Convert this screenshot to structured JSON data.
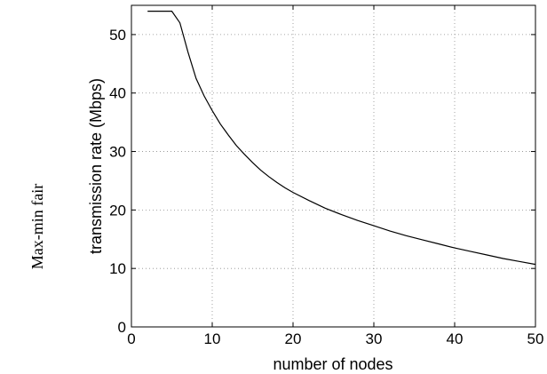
{
  "row_label": "Max-min fair",
  "chart_data": {
    "type": "line",
    "xlabel": "number of nodes",
    "ylabel": "transmission rate (Mbps)",
    "xlim": [
      0,
      50
    ],
    "ylim": [
      0,
      55
    ],
    "xticks": [
      0,
      10,
      20,
      30,
      40,
      50
    ],
    "yticks": [
      0,
      10,
      20,
      30,
      40,
      50
    ],
    "grid": true,
    "series": [
      {
        "x": [
          2,
          3,
          4,
          5,
          6,
          7,
          8,
          9,
          10,
          11,
          12,
          13,
          14,
          15,
          16,
          17,
          18,
          19,
          20,
          22,
          24,
          26,
          28,
          30,
          32,
          34,
          36,
          38,
          40,
          42,
          44,
          46,
          48,
          50
        ],
        "y": [
          54,
          54,
          54,
          54,
          52,
          47,
          42.5,
          39.5,
          37,
          34.7,
          32.8,
          31,
          29.5,
          28.1,
          26.8,
          25.7,
          24.7,
          23.8,
          23,
          21.6,
          20.3,
          19.2,
          18.2,
          17.3,
          16.4,
          15.6,
          14.9,
          14.2,
          13.5,
          12.9,
          12.3,
          11.7,
          11.2,
          10.7
        ],
        "color": "#000000"
      }
    ]
  }
}
